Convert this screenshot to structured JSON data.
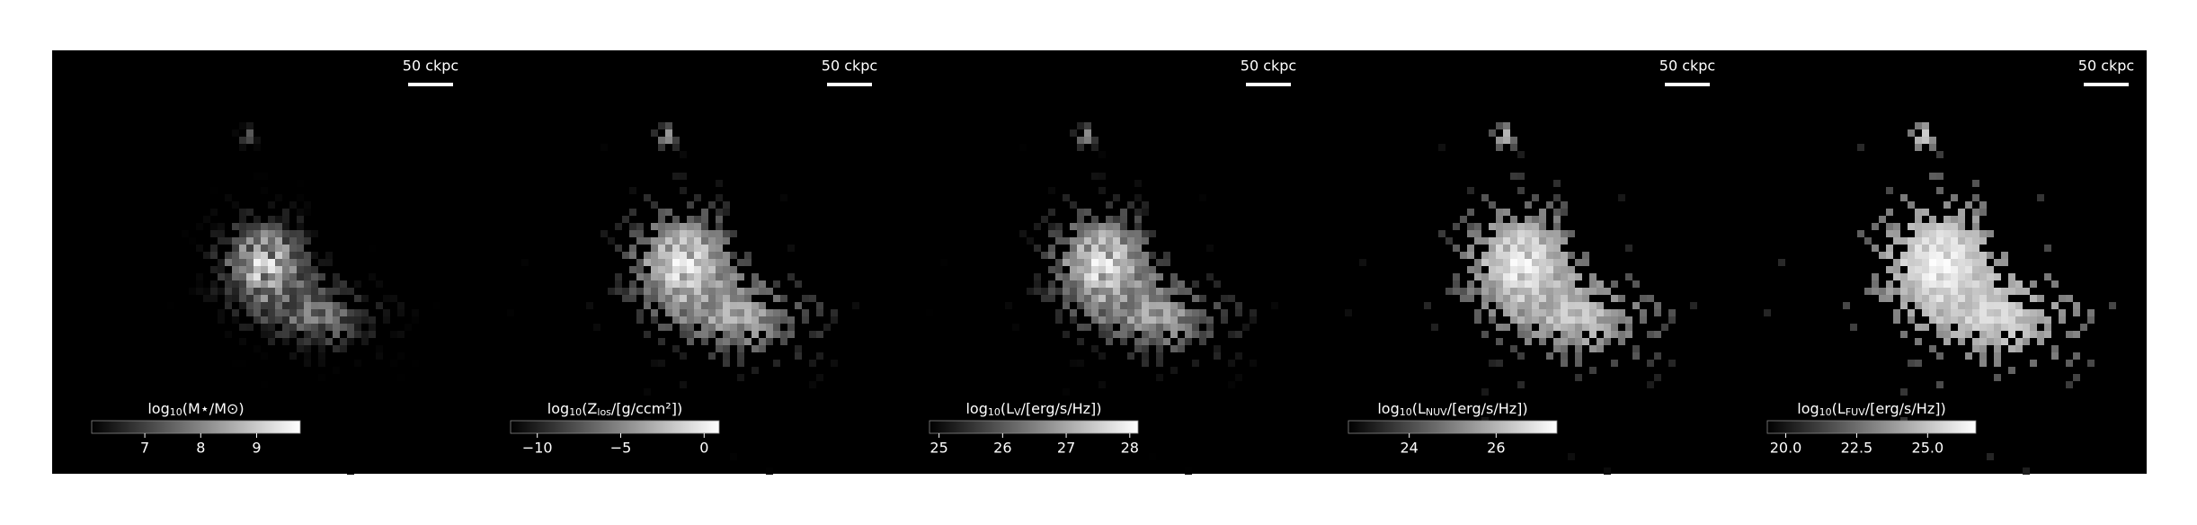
{
  "panels": [
    {
      "scale_bar": "50 ckpc",
      "colorbar": {
        "label": [
          "log",
          "10",
          "(M⋆/M⊙)"
        ],
        "lim": [
          6.05,
          9.78
        ],
        "ticks": [
          7,
          8,
          9
        ]
      }
    },
    {
      "scale_bar": "50 ckpc",
      "colorbar": {
        "label": [
          "log",
          "10",
          "(Z",
          "los",
          "/[g/ccm²])"
        ],
        "lim": [
          -11.6,
          0.9
        ],
        "ticks": [
          {
            "value": -10,
            "label": "−10"
          },
          {
            "value": -5,
            "label": "−5"
          },
          0
        ]
      }
    },
    {
      "scale_bar": "50 ckpc",
      "colorbar": {
        "label": [
          "log",
          "10",
          "(L",
          "V",
          "/[erg/s/Hz])"
        ],
        "lim": [
          24.85,
          28.13
        ],
        "ticks": [
          25,
          26,
          27,
          28
        ]
      }
    },
    {
      "scale_bar": "50 ckpc",
      "colorbar": {
        "label": [
          "log",
          "10",
          "(L",
          "NUV",
          "/[erg/s/Hz])"
        ],
        "lim": [
          22.6,
          27.4
        ],
        "ticks": [
          24,
          26
        ]
      }
    },
    {
      "scale_bar": "50 ckpc",
      "colorbar": {
        "label": [
          "log",
          "10",
          "(L",
          "FUV",
          "/[erg/s/Hz])"
        ],
        "lim": [
          19.35,
          26.7
        ],
        "ticks": [
          {
            "value": 20,
            "label": "20.0"
          },
          {
            "value": 22.5,
            "label": "22.5"
          },
          {
            "value": 25,
            "label": "25.0"
          }
        ]
      }
    }
  ]
}
